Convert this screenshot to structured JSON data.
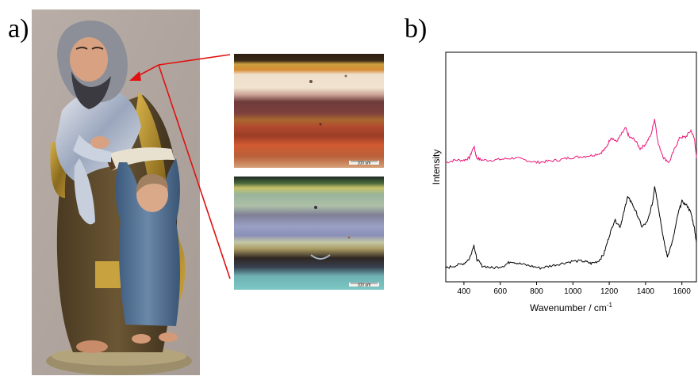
{
  "panels": {
    "a_label": "a)",
    "b_label": "b)"
  },
  "micrographs": {
    "top_scale": "100 um",
    "bottom_scale": "100 um"
  },
  "colors": {
    "pointer": "#e01010",
    "spectrum_top": "#e8187a",
    "spectrum_bottom": "#000000"
  },
  "chart_data": {
    "type": "line",
    "xlabel": "Wavenumber / cm",
    "xlabel_sup": "-1",
    "ylabel": "Intensity",
    "xlim": [
      300,
      1680
    ],
    "ylim": [
      0,
      1
    ],
    "x_ticks": [
      400,
      600,
      800,
      1000,
      1200,
      1400,
      1600
    ],
    "x_tick_labels": [
      "400",
      "600",
      "800",
      "1000",
      "1200",
      "1400",
      "1600"
    ],
    "series": [
      {
        "color": "#e8187a",
        "x": [
          300,
          350,
          400,
          430,
          455,
          470,
          500,
          560,
          620,
          680,
          740,
          800,
          860,
          920,
          980,
          1040,
          1100,
          1150,
          1180,
          1210,
          1240,
          1265,
          1290,
          1310,
          1340,
          1370,
          1400,
          1430,
          1450,
          1470,
          1500,
          1530,
          1560,
          1590,
          1620,
          1650,
          1670,
          1680
        ],
        "y": [
          0.52,
          0.53,
          0.53,
          0.54,
          0.59,
          0.54,
          0.53,
          0.53,
          0.535,
          0.54,
          0.53,
          0.52,
          0.525,
          0.53,
          0.54,
          0.545,
          0.55,
          0.56,
          0.58,
          0.63,
          0.61,
          0.64,
          0.67,
          0.63,
          0.62,
          0.58,
          0.6,
          0.64,
          0.71,
          0.6,
          0.54,
          0.52,
          0.58,
          0.63,
          0.63,
          0.66,
          0.62,
          0.54
        ]
      },
      {
        "color": "#000000",
        "x": [
          300,
          350,
          400,
          430,
          455,
          470,
          500,
          560,
          620,
          660,
          700,
          760,
          820,
          880,
          940,
          1000,
          1060,
          1100,
          1140,
          1170,
          1200,
          1230,
          1260,
          1280,
          1300,
          1320,
          1350,
          1380,
          1410,
          1440,
          1450,
          1470,
          1500,
          1520,
          1550,
          1580,
          1600,
          1630,
          1650,
          1670,
          1680
        ],
        "y": [
          0.06,
          0.07,
          0.08,
          0.1,
          0.16,
          0.1,
          0.07,
          0.06,
          0.07,
          0.09,
          0.08,
          0.07,
          0.06,
          0.07,
          0.08,
          0.09,
          0.09,
          0.08,
          0.09,
          0.12,
          0.2,
          0.27,
          0.24,
          0.3,
          0.37,
          0.35,
          0.3,
          0.24,
          0.26,
          0.35,
          0.42,
          0.33,
          0.18,
          0.11,
          0.18,
          0.3,
          0.35,
          0.33,
          0.3,
          0.23,
          0.17
        ]
      }
    ]
  }
}
